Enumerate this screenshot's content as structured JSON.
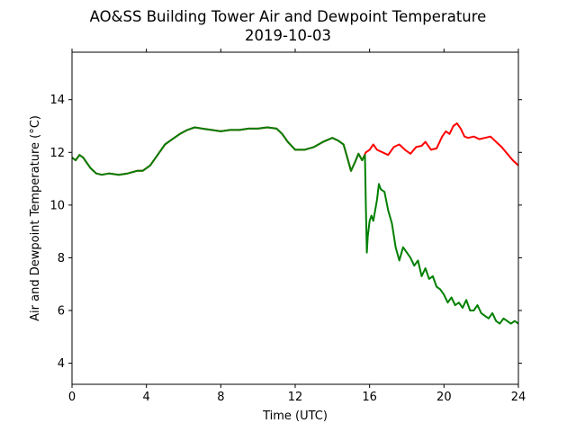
{
  "chart_data": {
    "type": "line",
    "title": "AO&SS Building Tower Air and Dewpoint Temperature",
    "subtitle": "2019-10-03",
    "xlabel": "Time (UTC)",
    "ylabel": "Air and Dewpoint Temperature (°C)",
    "xlim": [
      0,
      24
    ],
    "ylim": [
      3.2,
      15.8
    ],
    "x_ticks": [
      0,
      4,
      8,
      12,
      16,
      20,
      24
    ],
    "y_ticks": [
      4,
      6,
      8,
      10,
      12,
      14
    ],
    "grid": false,
    "legend": "none",
    "series": [
      {
        "color": "#ff0000",
        "x": [
          0,
          0.2,
          0.4,
          0.6,
          0.8,
          1.0,
          1.3,
          1.6,
          2.0,
          2.5,
          3.0,
          3.5,
          3.8,
          4.2,
          4.6,
          5.0,
          5.4,
          5.8,
          6.2,
          6.6,
          7.0,
          7.5,
          8.0,
          8.5,
          9.0,
          9.5,
          10.0,
          10.5,
          11.0,
          11.3,
          11.6,
          12.0,
          12.5,
          13.0,
          13.5,
          14.0,
          14.3,
          14.6,
          14.8,
          15.0,
          15.2,
          15.4,
          15.6,
          15.8,
          16.0,
          16.2,
          16.4,
          16.7,
          17.0,
          17.3,
          17.6,
          17.9,
          18.2,
          18.5,
          18.8,
          19.0,
          19.3,
          19.6,
          19.9,
          20.1,
          20.3,
          20.5,
          20.7,
          20.9,
          21.1,
          21.3,
          21.6,
          21.9,
          22.2,
          22.5,
          22.8,
          23.1,
          23.4,
          23.7,
          24.0
        ],
        "y": [
          11.8,
          11.7,
          11.9,
          11.8,
          11.6,
          11.4,
          11.2,
          11.15,
          11.2,
          11.15,
          11.2,
          11.3,
          11.3,
          11.5,
          11.9,
          12.3,
          12.5,
          12.7,
          12.85,
          12.95,
          12.9,
          12.85,
          12.8,
          12.85,
          12.85,
          12.9,
          12.9,
          12.95,
          12.9,
          12.7,
          12.4,
          12.1,
          12.1,
          12.2,
          12.4,
          12.55,
          12.45,
          12.3,
          11.8,
          11.3,
          11.6,
          11.95,
          11.7,
          12.0,
          12.1,
          12.3,
          12.1,
          12.0,
          11.9,
          12.2,
          12.3,
          12.1,
          11.95,
          12.2,
          12.25,
          12.4,
          12.1,
          12.15,
          12.6,
          12.8,
          12.7,
          13.0,
          13.1,
          12.9,
          12.6,
          12.55,
          12.6,
          12.5,
          12.55,
          12.6,
          12.4,
          12.2,
          11.95,
          11.7,
          11.5
        ]
      },
      {
        "color": "#008000",
        "x": [
          0,
          0.2,
          0.4,
          0.6,
          0.8,
          1.0,
          1.3,
          1.6,
          2.0,
          2.5,
          3.0,
          3.5,
          3.8,
          4.2,
          4.6,
          5.0,
          5.4,
          5.8,
          6.2,
          6.6,
          7.0,
          7.5,
          8.0,
          8.5,
          9.0,
          9.5,
          10.0,
          10.5,
          11.0,
          11.3,
          11.6,
          12.0,
          12.5,
          13.0,
          13.5,
          14.0,
          14.3,
          14.6,
          14.8,
          15.0,
          15.2,
          15.4,
          15.6,
          15.75,
          15.8,
          15.85,
          15.9,
          16.0,
          16.1,
          16.2,
          16.4,
          16.5,
          16.6,
          16.8,
          17.0,
          17.2,
          17.4,
          17.6,
          17.8,
          18.0,
          18.2,
          18.4,
          18.6,
          18.8,
          19.0,
          19.2,
          19.4,
          19.6,
          19.8,
          20.0,
          20.2,
          20.4,
          20.6,
          20.8,
          21.0,
          21.2,
          21.4,
          21.6,
          21.8,
          22.0,
          22.2,
          22.4,
          22.6,
          22.8,
          23.0,
          23.2,
          23.4,
          23.6,
          23.8,
          24.0
        ],
        "y": [
          11.8,
          11.7,
          11.9,
          11.8,
          11.6,
          11.4,
          11.2,
          11.15,
          11.2,
          11.15,
          11.2,
          11.3,
          11.3,
          11.5,
          11.9,
          12.3,
          12.5,
          12.7,
          12.85,
          12.95,
          12.9,
          12.85,
          12.8,
          12.85,
          12.85,
          12.9,
          12.9,
          12.95,
          12.9,
          12.7,
          12.4,
          12.1,
          12.1,
          12.2,
          12.4,
          12.55,
          12.45,
          12.3,
          11.8,
          11.3,
          11.6,
          11.95,
          11.7,
          11.9,
          10.0,
          8.2,
          8.8,
          9.4,
          9.6,
          9.4,
          10.2,
          10.8,
          10.6,
          10.5,
          9.8,
          9.3,
          8.4,
          7.9,
          8.4,
          8.2,
          8.0,
          7.7,
          7.9,
          7.3,
          7.6,
          7.2,
          7.3,
          6.9,
          6.8,
          6.6,
          6.3,
          6.5,
          6.2,
          6.3,
          6.1,
          6.4,
          6.0,
          6.0,
          6.2,
          5.9,
          5.8,
          5.7,
          5.9,
          5.6,
          5.5,
          5.7,
          5.6,
          5.5,
          5.6,
          5.5
        ]
      }
    ]
  }
}
